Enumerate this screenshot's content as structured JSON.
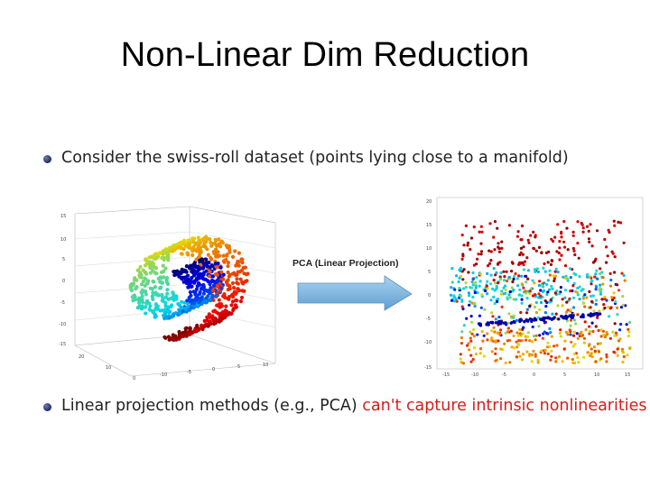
{
  "slide": {
    "title": "Non-Linear Dim Reduction",
    "bullets": [
      {
        "text": "Consider the swiss-roll dataset (points lying close to a manifold)"
      },
      {
        "text_plain": "Linear projection methods (e.g., PCA) ",
        "text_highlight": "can't capture intrinsic nonlinearities",
        "highlight_color": "#d51d1d"
      }
    ],
    "arrow_label": "PCA (Linear Projection)",
    "arrow_color": "#7fb6e0"
  },
  "left_plot": {
    "y_ticks": [
      "15",
      "10",
      "5",
      "0",
      "-5",
      "-10",
      "-15"
    ],
    "depth_ticks": [
      "20",
      "10",
      "0"
    ],
    "x_ticks": [
      "-10",
      "-5",
      "0",
      "5",
      "10"
    ]
  },
  "right_plot": {
    "y_ticks": [
      "20",
      "15",
      "10",
      "5",
      "0",
      "-5",
      "-10",
      "-15"
    ],
    "x_ticks": [
      "-15",
      "-10",
      "-5",
      "0",
      "5",
      "10",
      "15"
    ]
  }
}
